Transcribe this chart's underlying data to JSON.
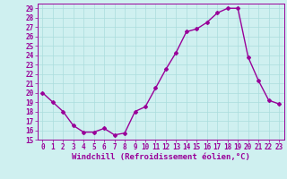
{
  "x": [
    0,
    1,
    2,
    3,
    4,
    5,
    6,
    7,
    8,
    9,
    10,
    11,
    12,
    13,
    14,
    15,
    16,
    17,
    18,
    19,
    20,
    21,
    22,
    23
  ],
  "y": [
    20,
    19,
    18,
    16.5,
    15.8,
    15.8,
    16.2,
    15.5,
    15.7,
    18,
    18.5,
    20.5,
    22.5,
    24.3,
    26.5,
    26.8,
    27.5,
    28.5,
    29,
    29,
    23.8,
    21.3,
    19.2,
    18.8
  ],
  "line_color": "#990099",
  "marker": "D",
  "markersize": 2,
  "linewidth": 1.0,
  "bg_color": "#cff0f0",
  "grid_color": "#aadddd",
  "xlabel": "Windchill (Refroidissement éolien,°C)",
  "xlabel_fontsize": 6.5,
  "tick_fontsize": 5.5,
  "ylim": [
    15,
    29.5
  ],
  "yticks": [
    15,
    16,
    17,
    18,
    19,
    20,
    21,
    22,
    23,
    24,
    25,
    26,
    27,
    28,
    29
  ],
  "xlim": [
    -0.5,
    23.5
  ],
  "xticks": [
    0,
    1,
    2,
    3,
    4,
    5,
    6,
    7,
    8,
    9,
    10,
    11,
    12,
    13,
    14,
    15,
    16,
    17,
    18,
    19,
    20,
    21,
    22,
    23
  ]
}
